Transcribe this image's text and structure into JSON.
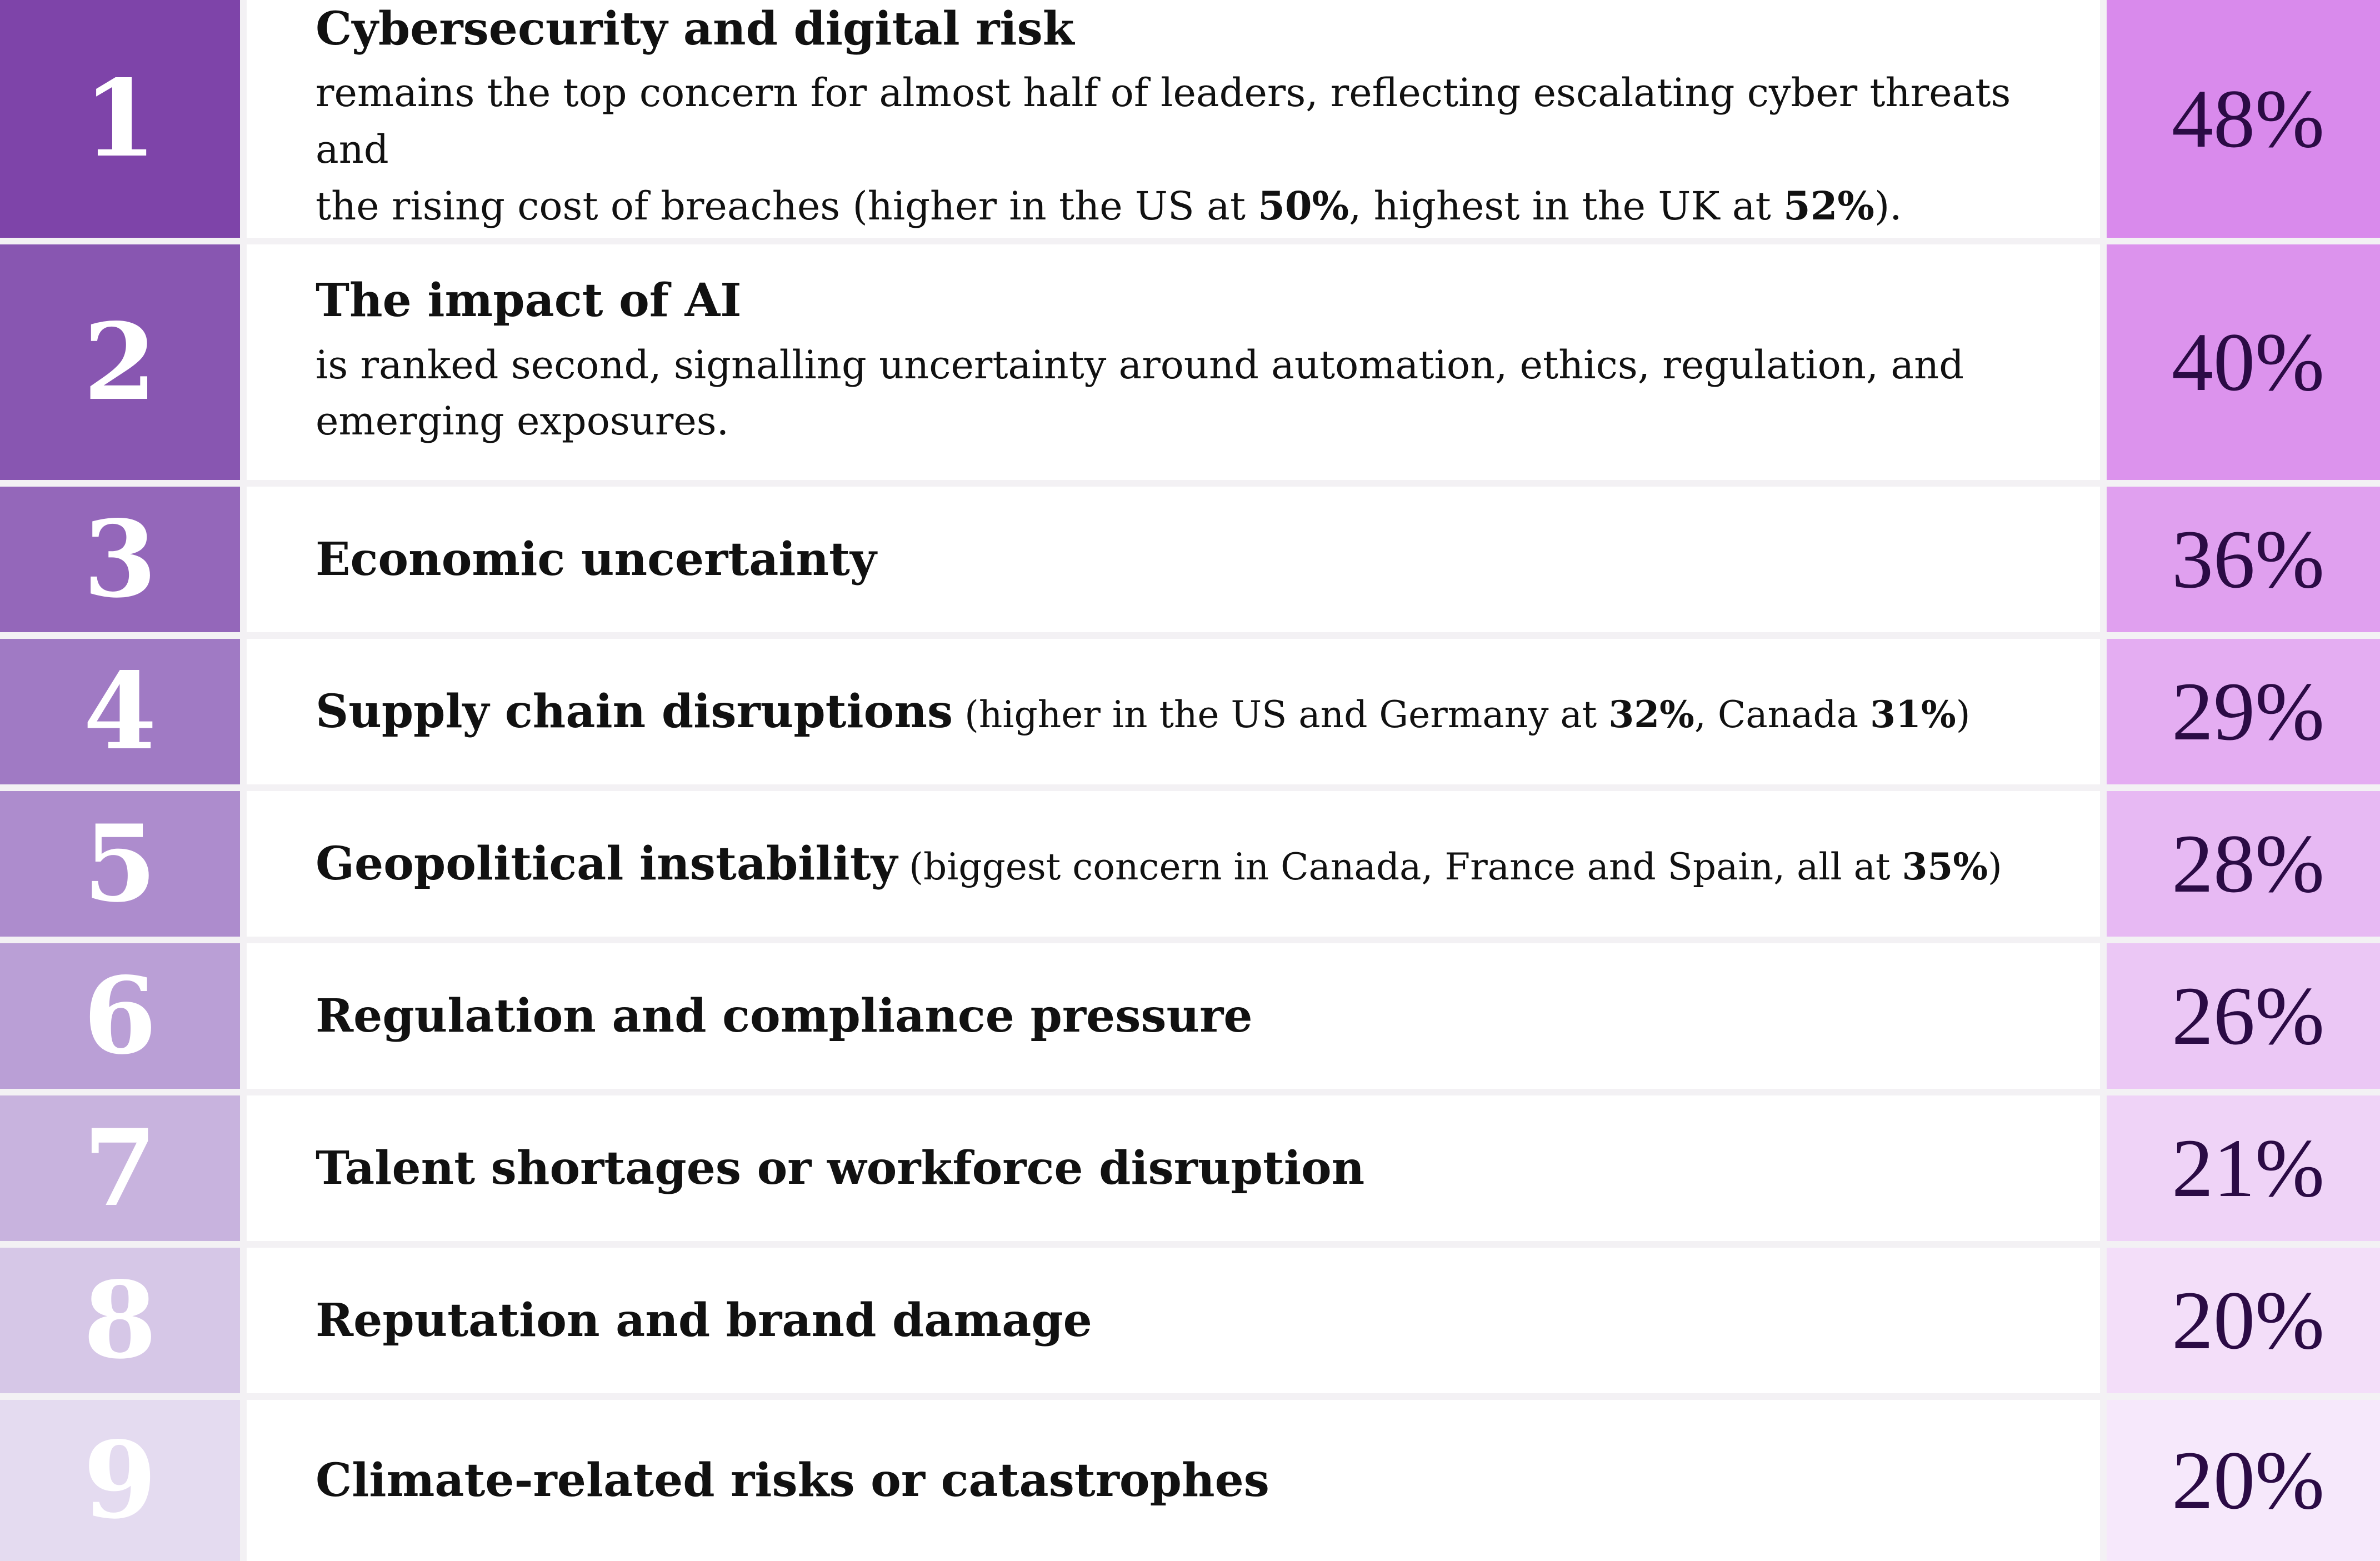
{
  "chart_data": {
    "type": "table",
    "rows": [
      {
        "rank": "1",
        "title": "Cybersecurity and digital risk",
        "desc_1": "remains the top concern for almost half of leaders, reflecting escalating cyber threats and",
        "desc_2a": "the rising cost of breaches (higher in the US at ",
        "desc_2b": "50%",
        "desc_2c": ", highest in the UK at ",
        "desc_2d": "52%",
        "desc_2e": ").",
        "value": "48%"
      },
      {
        "rank": "2",
        "title": "The impact of AI",
        "desc_1": "is ranked second, signalling uncertainty around automation, ethics, regulation, and",
        "desc_2": "emerging exposures.",
        "value": "40%"
      },
      {
        "rank": "3",
        "title": "Economic uncertainty",
        "value": "36%"
      },
      {
        "rank": "4",
        "title": "Supply chain disruptions",
        "note_a": " (higher in the US and Germany at ",
        "note_b": "32%",
        "note_c": ", Canada ",
        "note_d": "31%",
        "note_e": ")",
        "value": "29%"
      },
      {
        "rank": "5",
        "title": "Geopolitical instability",
        "note_a": " (biggest concern in Canada, France and Spain, all at ",
        "note_b": "35%",
        "note_c": ")",
        "value": "28%"
      },
      {
        "rank": "6",
        "title": "Regulation and compliance pressure",
        "value": "26%"
      },
      {
        "rank": "7",
        "title": "Talent shortages or workforce disruption",
        "value": "21%"
      },
      {
        "rank": "8",
        "title": "Reputation and brand damage",
        "value": "20%"
      },
      {
        "rank": "9",
        "title": "Climate-related risks or catastrophes",
        "value": "20%"
      }
    ],
    "colors": {
      "rank": [
        "#7e44a9",
        "#8856b1",
        "#9467ba",
        "#a07ac4",
        "#ad8ccd",
        "#ba9fd6",
        "#c8b3de",
        "#d6c7e7",
        "#e4dbf0"
      ],
      "value": [
        "#d98aec",
        "#dc93ed",
        "#e0a0ef",
        "#e4adf2",
        "#e7b9f3",
        "#ebc7f5",
        "#efd3f7",
        "#f3def9",
        "#f6e8fb"
      ],
      "value_text": "#2b0b45"
    }
  }
}
